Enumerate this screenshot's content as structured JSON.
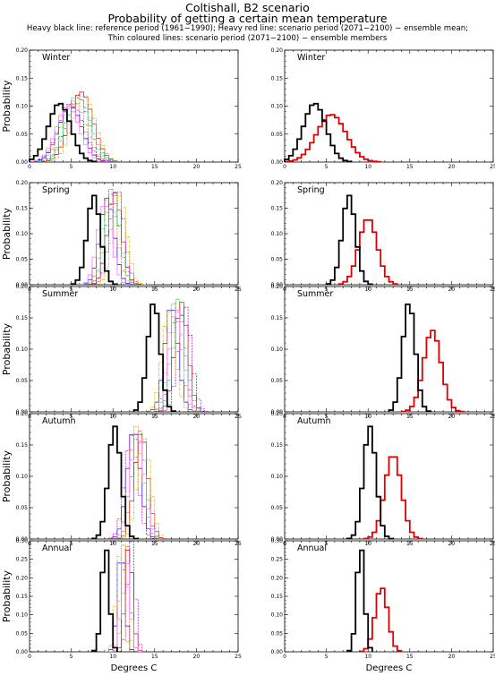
{
  "header": {
    "title": "Coltishall, B2 scenario",
    "subtitle": "Probability of getting a certain mean temperature",
    "legend_line1": "Heavy black line: reference period (1961−1990); Heavy red line: scenario period (2071−2100) − ensemble mean;",
    "legend_line2": "Thin coloured lines: scenario period (2071−2100) − ensemble members"
  },
  "colors": {
    "reference": "#000000",
    "ensemble_mean": "#e00000",
    "members": [
      "#000000",
      "#0000ff",
      "#ff6a00",
      "#00bb00",
      "#e00000",
      "#a000c0",
      "#c8b400",
      "#ff60ff",
      "#00a8a8",
      "#7a3d00"
    ]
  },
  "chart_data": [
    {
      "type": "line",
      "panel": "left",
      "season": "Winter",
      "ylabel": "Probability",
      "xlabel": "",
      "xlim": [
        0,
        25
      ],
      "ylim": [
        0,
        0.2
      ],
      "xticks": [
        0,
        5,
        10,
        15,
        20,
        25
      ],
      "yticks": [
        "0.00",
        "0.05",
        "0.10",
        "0.15",
        "0.20"
      ],
      "reference": {
        "mean": 3.6,
        "sd": 1.35,
        "peak": 0.105
      },
      "members": [
        {
          "mean": 4.9,
          "sd": 1.4,
          "peak": 0.1
        },
        {
          "mean": 5.3,
          "sd": 1.45,
          "peak": 0.11
        },
        {
          "mean": 5.7,
          "sd": 1.4,
          "peak": 0.12
        },
        {
          "mean": 6.2,
          "sd": 1.4,
          "peak": 0.125
        },
        {
          "mean": 5.0,
          "sd": 1.5,
          "peak": 0.105
        },
        {
          "mean": 6.5,
          "sd": 1.35,
          "peak": 0.12
        },
        {
          "mean": 4.6,
          "sd": 1.4,
          "peak": 0.1
        },
        {
          "mean": 5.9,
          "sd": 1.45,
          "peak": 0.115
        }
      ]
    },
    {
      "type": "line",
      "panel": "right",
      "season": "Winter",
      "ylabel": "",
      "xlabel": "",
      "xlim": [
        0,
        25
      ],
      "ylim": [
        0,
        0.2
      ],
      "xticks": [
        0,
        5,
        10,
        15,
        20,
        25
      ],
      "yticks": [
        "0.00",
        "0.05",
        "0.10",
        "0.15",
        "0.20"
      ],
      "reference": {
        "mean": 3.6,
        "sd": 1.35,
        "peak": 0.105
      },
      "ensemble_mean": {
        "mean": 5.6,
        "sd": 1.75,
        "peak": 0.085
      }
    },
    {
      "type": "line",
      "panel": "left",
      "season": "Spring",
      "ylabel": "Probability",
      "xlabel": "",
      "xlim": [
        0,
        25
      ],
      "ylim": [
        0,
        0.2
      ],
      "xticks": [
        0,
        5,
        10,
        15,
        20,
        25
      ],
      "yticks": [
        "0.00",
        "0.05",
        "0.10",
        "0.15",
        "0.20"
      ],
      "reference": {
        "mean": 7.7,
        "sd": 0.8,
        "peak": 0.175
      },
      "members": [
        {
          "mean": 9.3,
          "sd": 0.85,
          "peak": 0.17
        },
        {
          "mean": 9.6,
          "sd": 0.85,
          "peak": 0.18
        },
        {
          "mean": 9.9,
          "sd": 0.85,
          "peak": 0.19
        },
        {
          "mean": 10.2,
          "sd": 0.85,
          "peak": 0.18
        },
        {
          "mean": 10.5,
          "sd": 0.85,
          "peak": 0.19
        },
        {
          "mean": 10.8,
          "sd": 0.85,
          "peak": 0.175
        },
        {
          "mean": 9.0,
          "sd": 0.85,
          "peak": 0.16
        },
        {
          "mean": 10.0,
          "sd": 0.9,
          "peak": 0.165
        }
      ]
    },
    {
      "type": "line",
      "panel": "right",
      "season": "Spring",
      "ylabel": "",
      "xlabel": "",
      "xlim": [
        0,
        25
      ],
      "ylim": [
        0,
        0.2
      ],
      "xticks": [
        0,
        5,
        10,
        15,
        20,
        25
      ],
      "yticks": [
        "0.00",
        "0.05",
        "0.10",
        "0.15",
        "0.20"
      ],
      "reference": {
        "mean": 7.7,
        "sd": 0.8,
        "peak": 0.175
      },
      "ensemble_mean": {
        "mean": 10.0,
        "sd": 1.1,
        "peak": 0.13
      }
    },
    {
      "type": "line",
      "panel": "left",
      "season": "Summer",
      "ylabel": "Probability",
      "xlabel": "",
      "xlim": [
        0,
        25
      ],
      "ylim": [
        0,
        0.2
      ],
      "xticks": [
        0,
        5,
        10,
        15,
        20,
        25
      ],
      "yticks": [
        "0.00",
        "0.05",
        "0.10",
        "0.15",
        "0.20"
      ],
      "reference": {
        "mean": 14.9,
        "sd": 0.75,
        "peak": 0.175
      },
      "members": [
        {
          "mean": 17.0,
          "sd": 0.8,
          "peak": 0.17
        },
        {
          "mean": 17.4,
          "sd": 0.8,
          "peak": 0.175
        },
        {
          "mean": 17.8,
          "sd": 0.8,
          "peak": 0.18
        },
        {
          "mean": 18.2,
          "sd": 0.8,
          "peak": 0.175
        },
        {
          "mean": 18.6,
          "sd": 0.8,
          "peak": 0.17
        },
        {
          "mean": 16.7,
          "sd": 0.8,
          "peak": 0.16
        },
        {
          "mean": 17.6,
          "sd": 0.85,
          "peak": 0.165
        },
        {
          "mean": 18.0,
          "sd": 0.85,
          "peak": 0.15
        }
      ]
    },
    {
      "type": "line",
      "panel": "right",
      "season": "Summer",
      "ylabel": "",
      "xlabel": "",
      "xlim": [
        0,
        25
      ],
      "ylim": [
        0,
        0.2
      ],
      "xticks": [
        0,
        5,
        10,
        15,
        20,
        25
      ],
      "yticks": [
        "0.00",
        "0.05",
        "0.10",
        "0.15",
        "0.20"
      ],
      "reference": {
        "mean": 14.9,
        "sd": 0.75,
        "peak": 0.175
      },
      "ensemble_mean": {
        "mean": 17.7,
        "sd": 1.05,
        "peak": 0.13
      }
    },
    {
      "type": "line",
      "panel": "left",
      "season": "Autumn",
      "ylabel": "Probability",
      "xlabel": "",
      "xlim": [
        0,
        25
      ],
      "ylim": [
        0,
        0.2
      ],
      "xticks": [
        0,
        5,
        10,
        15,
        20,
        25
      ],
      "yticks": [
        "0.00",
        "0.05",
        "0.10",
        "0.15",
        "0.20"
      ],
      "reference": {
        "mean": 10.2,
        "sd": 0.75,
        "peak": 0.18
      },
      "members": [
        {
          "mean": 12.5,
          "sd": 0.8,
          "peak": 0.175
        },
        {
          "mean": 12.8,
          "sd": 0.8,
          "peak": 0.18
        },
        {
          "mean": 13.1,
          "sd": 0.8,
          "peak": 0.175
        },
        {
          "mean": 13.4,
          "sd": 0.8,
          "peak": 0.17
        },
        {
          "mean": 12.2,
          "sd": 0.8,
          "peak": 0.165
        },
        {
          "mean": 13.7,
          "sd": 0.8,
          "peak": 0.16
        },
        {
          "mean": 12.9,
          "sd": 0.85,
          "peak": 0.17
        }
      ]
    },
    {
      "type": "line",
      "panel": "right",
      "season": "Autumn",
      "ylabel": "",
      "xlabel": "",
      "xlim": [
        0,
        25
      ],
      "ylim": [
        0,
        0.2
      ],
      "xticks": [
        0,
        5,
        10,
        15,
        20,
        25
      ],
      "yticks": [
        "0.00",
        "0.05",
        "0.10",
        "0.15",
        "0.20"
      ],
      "reference": {
        "mean": 10.2,
        "sd": 0.75,
        "peak": 0.18
      },
      "ensemble_mean": {
        "mean": 13.0,
        "sd": 1.0,
        "peak": 0.135
      }
    },
    {
      "type": "line",
      "panel": "left",
      "season": "Annual",
      "ylabel": "Probability",
      "xlabel": "Degrees C",
      "xlim": [
        0,
        25
      ],
      "ylim": [
        0,
        0.3
      ],
      "xticks": [
        0,
        5,
        10,
        15,
        20,
        25
      ],
      "yticks": [
        "0.00",
        "0.05",
        "0.10",
        "0.15",
        "0.20",
        "0.25",
        "0.30"
      ],
      "reference": {
        "mean": 9.1,
        "sd": 0.45,
        "peak": 0.29
      },
      "members": [
        {
          "mean": 11.0,
          "sd": 0.45,
          "peak": 0.28
        },
        {
          "mean": 11.3,
          "sd": 0.45,
          "peak": 0.29
        },
        {
          "mean": 11.6,
          "sd": 0.45,
          "peak": 0.3
        },
        {
          "mean": 11.9,
          "sd": 0.45,
          "peak": 0.29
        },
        {
          "mean": 12.2,
          "sd": 0.45,
          "peak": 0.3
        },
        {
          "mean": 10.8,
          "sd": 0.45,
          "peak": 0.26
        },
        {
          "mean": 11.5,
          "sd": 0.5,
          "peak": 0.27
        }
      ]
    },
    {
      "type": "line",
      "panel": "right",
      "season": "Annual",
      "ylabel": "",
      "xlabel": "Degrees C",
      "xlim": [
        0,
        25
      ],
      "ylim": [
        0,
        0.3
      ],
      "xticks": [
        0,
        5,
        10,
        15,
        20,
        25
      ],
      "yticks": [
        "0.00",
        "0.05",
        "0.10",
        "0.15",
        "0.20",
        "0.25",
        "0.30"
      ],
      "reference": {
        "mean": 9.1,
        "sd": 0.45,
        "peak": 0.29
      },
      "ensemble_mean": {
        "mean": 11.6,
        "sd": 0.75,
        "peak": 0.175
      }
    }
  ]
}
